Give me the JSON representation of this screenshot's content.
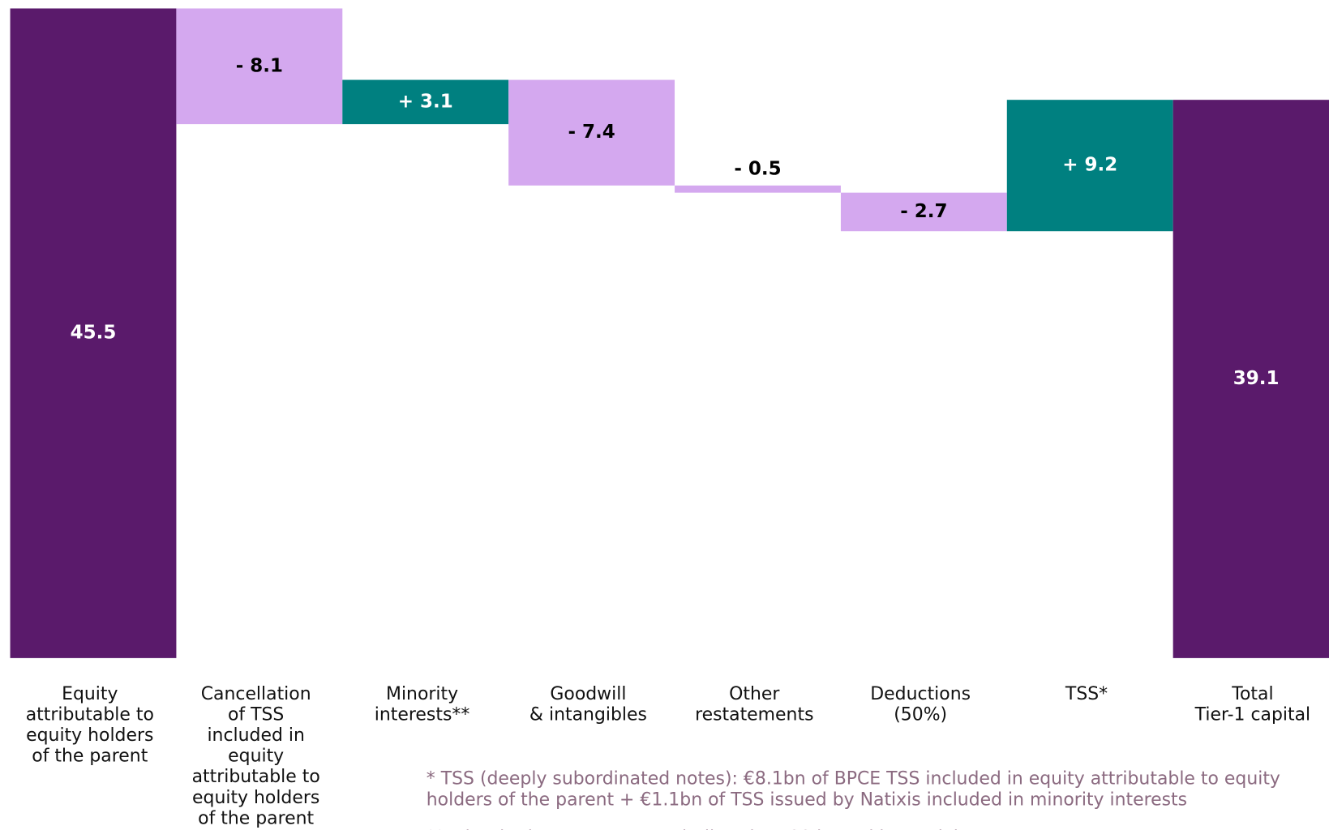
{
  "chart_data": {
    "type": "waterfall",
    "categories": [
      [
        "Equity",
        "attributable to",
        "equity holders",
        "of the parent"
      ],
      [
        "Cancellation",
        "of TSS",
        "included in",
        "equity",
        "attributable to",
        "equity holders",
        "of the parent"
      ],
      [
        "Minority",
        "interests**"
      ],
      [
        "Goodwill",
        "& intangibles"
      ],
      [
        "Other",
        "restatements"
      ],
      [
        "Deductions",
        "(50%)"
      ],
      [
        "TSS*"
      ],
      [
        "Total",
        "Tier-1 capital"
      ]
    ],
    "values": [
      45.5,
      -8.1,
      3.1,
      -7.4,
      -0.5,
      -2.7,
      9.2,
      39.1
    ],
    "value_labels": [
      "45.5",
      "- 8.1",
      "+ 3.1",
      "- 7.4",
      "- 0.5",
      "- 2.7",
      "+ 9.2",
      "39.1"
    ],
    "measure": [
      "total",
      "relative",
      "relative",
      "relative",
      "relative",
      "relative",
      "relative",
      "total"
    ],
    "colors": {
      "total": "#5a1a6b",
      "increase": "#008080",
      "decrease": "#d4a8ef"
    },
    "ylim": [
      0,
      45.5
    ],
    "footnotes": [
      "* TSS (deeply subordinated notes): €8.1bn of BPCE TSS included in equity attributable to equity",
      "holders of the parent + €1.1bn of TSS issued by Natixis included in minority interests",
      "** Minority interests net, excluding the TSS issued by Natixis"
    ]
  }
}
